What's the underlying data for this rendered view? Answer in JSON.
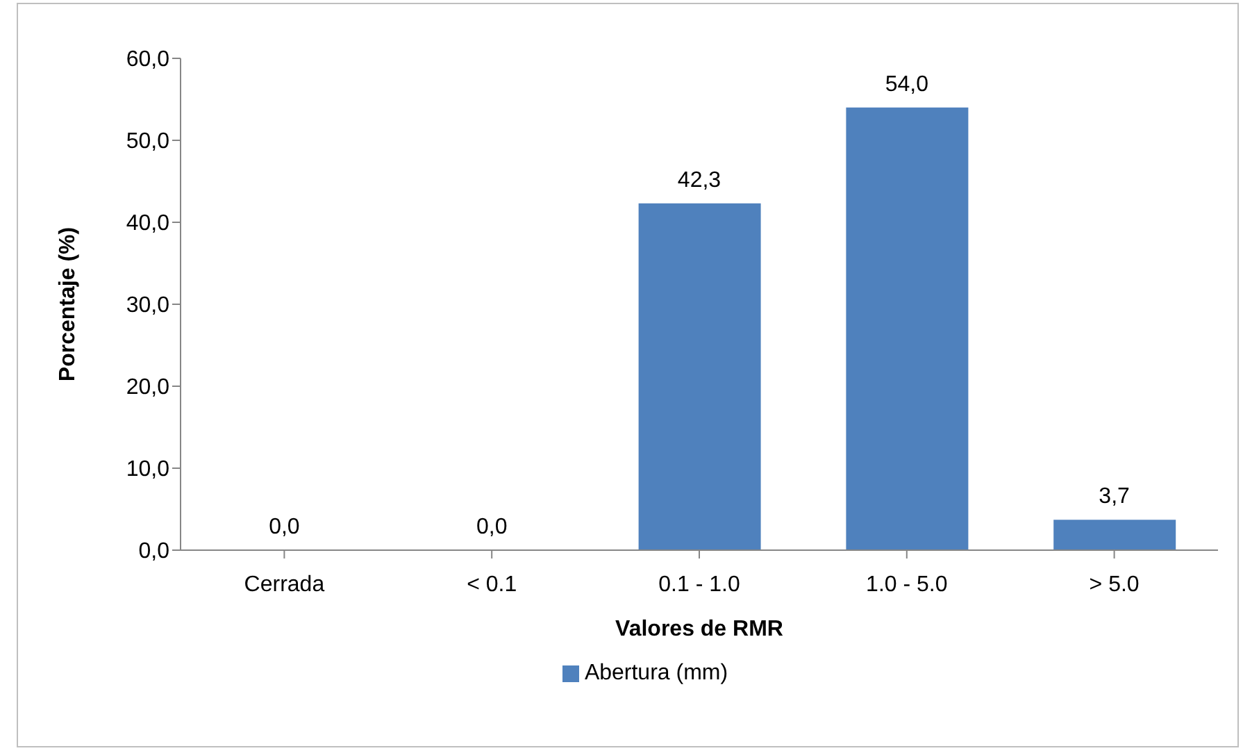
{
  "chart_data": {
    "type": "bar",
    "xlabel": "Valores de RMR",
    "ylabel": "Porcentaje (%)",
    "categories": [
      "Cerrada",
      "< 0.1",
      "0.1 - 1.0",
      "1.0 - 5.0",
      "> 5.0"
    ],
    "series": [
      {
        "name": "Abertura (mm)",
        "color": "#4f81bd",
        "values": [
          0,
          0,
          42.3,
          54,
          3.7
        ],
        "value_labels": [
          "0,0",
          "0,0",
          "42,3",
          "54,0",
          "3,7"
        ]
      }
    ],
    "ylim": [
      0,
      60
    ],
    "yticks": [
      {
        "value": 0,
        "label": "0,0"
      },
      {
        "value": 10,
        "label": "10,0"
      },
      {
        "value": 20,
        "label": "20,0"
      },
      {
        "value": 30,
        "label": "30,0"
      },
      {
        "value": 40,
        "label": "40,0"
      },
      {
        "value": 50,
        "label": "50,0"
      },
      {
        "value": 60,
        "label": "60,0"
      }
    ],
    "grid": false,
    "legend": "bottom"
  }
}
